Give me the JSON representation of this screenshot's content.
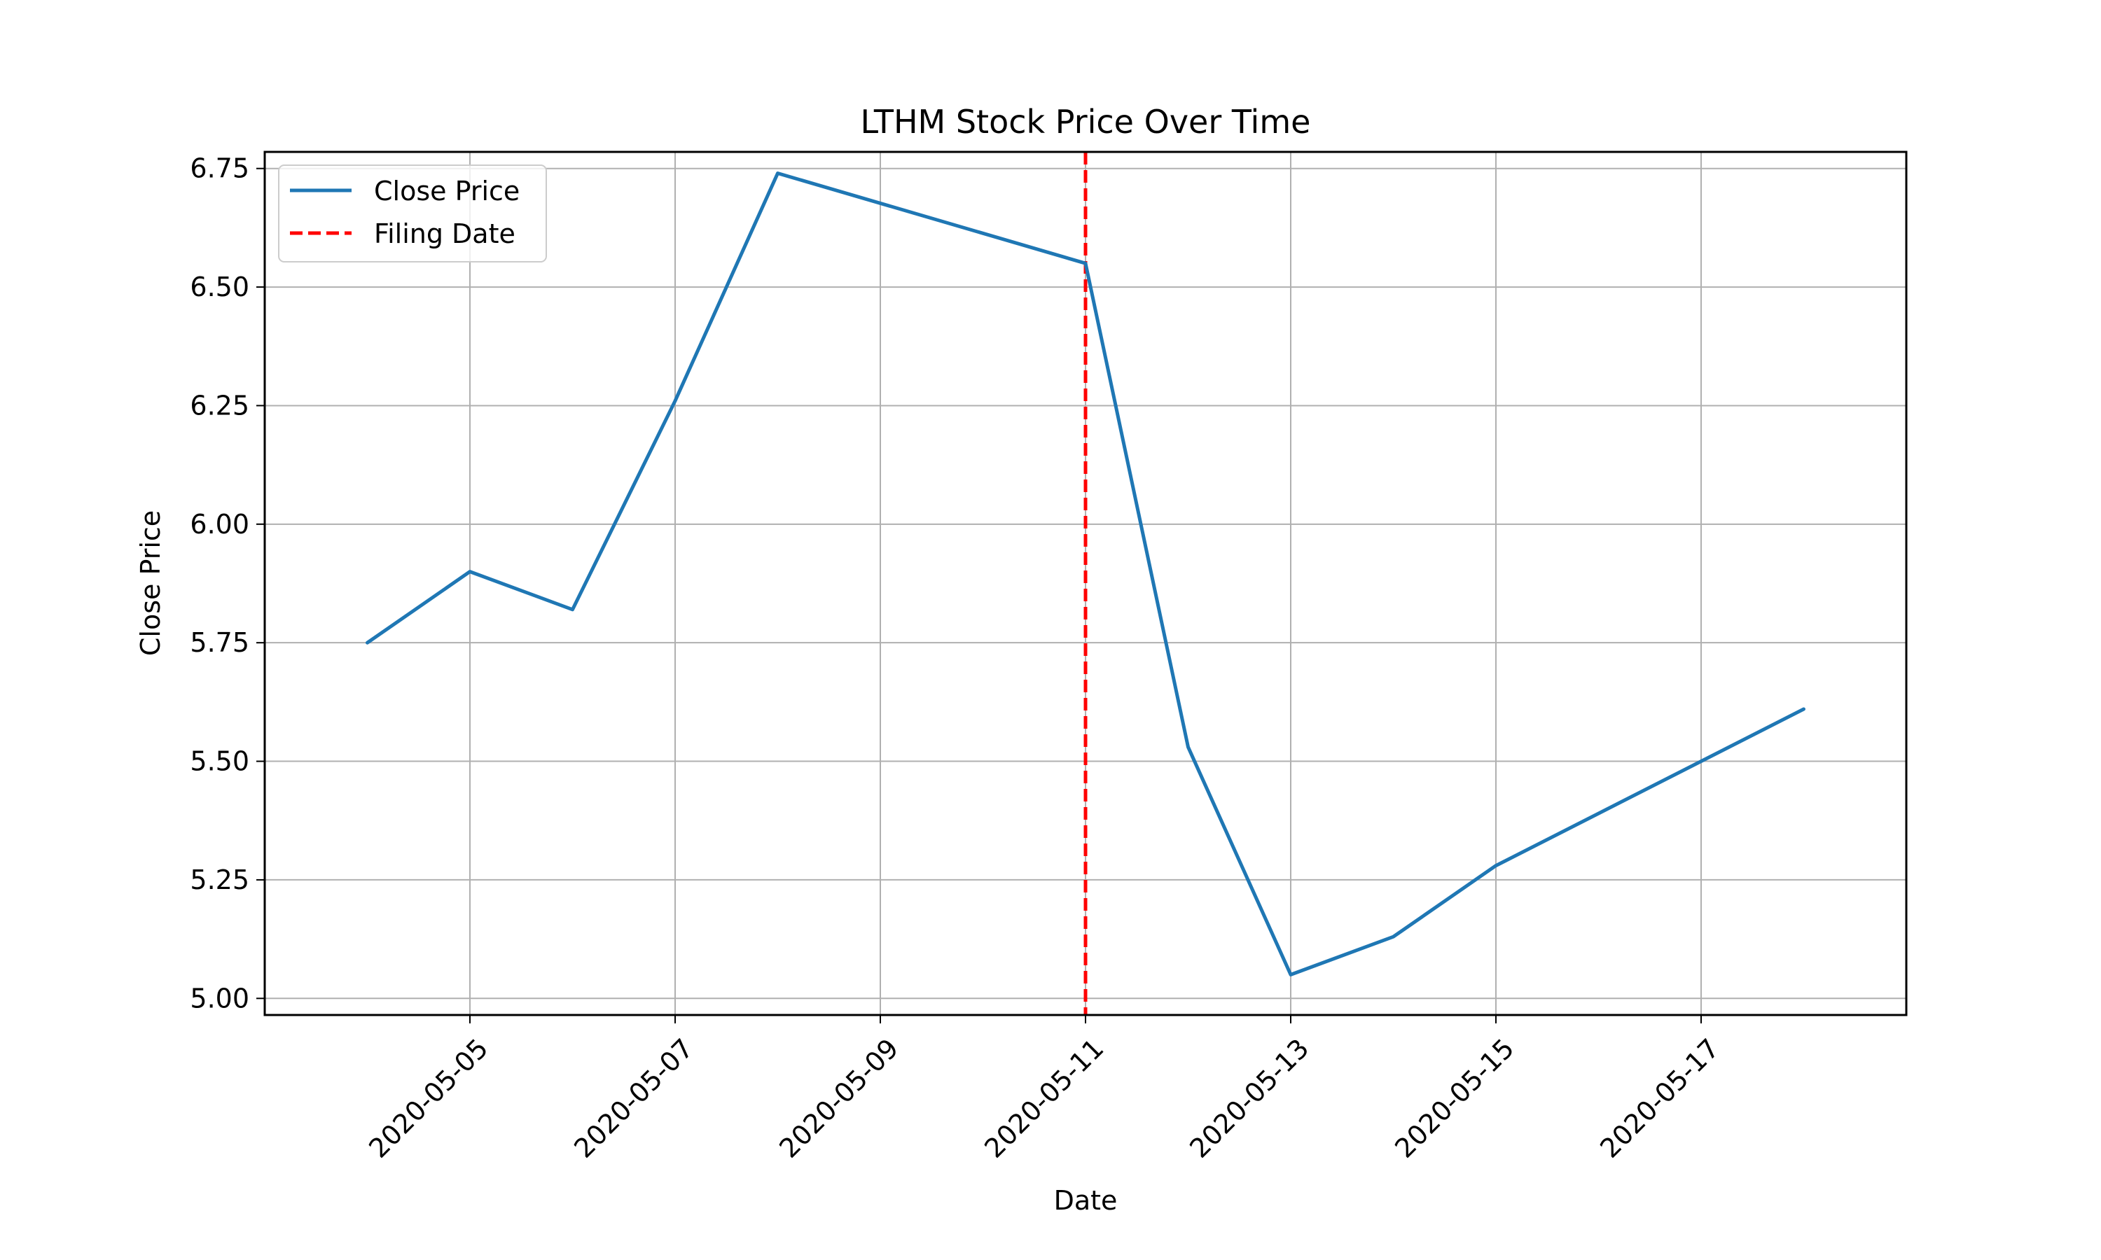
{
  "chart_data": {
    "type": "line",
    "title": "LTHM Stock Price Over Time",
    "xlabel": "Date",
    "ylabel": "Close Price",
    "x": [
      "2020-05-04",
      "2020-05-05",
      "2020-05-06",
      "2020-05-07",
      "2020-05-08",
      "2020-05-11",
      "2020-05-12",
      "2020-05-13",
      "2020-05-14",
      "2020-05-15",
      "2020-05-18"
    ],
    "x_ticks": [
      "2020-05-05",
      "2020-05-07",
      "2020-05-09",
      "2020-05-11",
      "2020-05-13",
      "2020-05-15",
      "2020-05-17"
    ],
    "y_ticks": [
      "5.00",
      "5.25",
      "5.50",
      "5.75",
      "6.00",
      "6.25",
      "6.50",
      "6.75"
    ],
    "xlim": [
      "2020-05-03",
      "2020-05-19"
    ],
    "ylim": [
      4.965,
      6.785
    ],
    "grid": true,
    "legend_position": "top-left",
    "series": [
      {
        "name": "Close Price",
        "color": "#1f77b4",
        "style": "solid",
        "values": [
          5.75,
          5.9,
          5.82,
          6.26,
          6.74,
          6.55,
          5.53,
          5.05,
          5.13,
          5.28,
          5.61
        ]
      }
    ],
    "vlines": [
      {
        "name": "Filing Date",
        "x": "2020-05-11",
        "color": "#ff0000",
        "style": "dashed"
      }
    ]
  }
}
